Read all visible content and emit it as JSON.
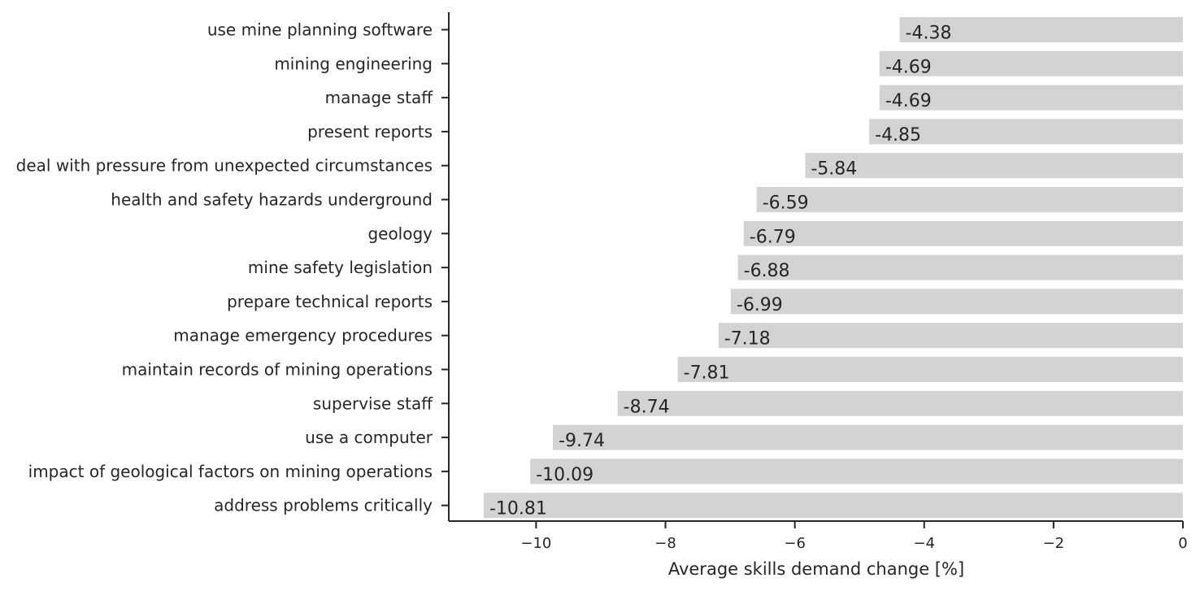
{
  "chart_data": {
    "type": "bar",
    "orientation": "horizontal",
    "categories": [
      "use mine planning software",
      "mining engineering",
      "manage staff",
      "present reports",
      "deal with pressure from unexpected circumstances",
      "health and safety hazards underground",
      "geology",
      "mine safety legislation",
      "prepare technical reports",
      "manage emergency procedures",
      "maintain records of mining operations",
      "supervise staff",
      "use a computer",
      "impact of geological factors on mining operations",
      "address problems critically"
    ],
    "values": [
      -4.38,
      -4.69,
      -4.69,
      -4.85,
      -5.84,
      -6.59,
      -6.79,
      -6.88,
      -6.99,
      -7.18,
      -7.81,
      -8.74,
      -9.74,
      -10.09,
      -10.81
    ],
    "data_labels": [
      "-4.38",
      "-4.69",
      "-4.69",
      "-4.85",
      "-5.84",
      "-6.59",
      "-6.79",
      "-6.88",
      "-6.99",
      "-7.18",
      "-7.81",
      "-8.74",
      "-9.74",
      "-10.09",
      "-10.81"
    ],
    "title": "",
    "xlabel": "Average skills demand change [%]",
    "ylabel": "",
    "xlim": [
      -11.35,
      0
    ],
    "xticks": [
      -10,
      -8,
      -6,
      -4,
      -2,
      0
    ],
    "xtick_labels": [
      "−10",
      "−8",
      "−6",
      "−4",
      "−2",
      "0"
    ],
    "bar_color": "#d3d3d3",
    "grid": false,
    "legend": "none"
  }
}
